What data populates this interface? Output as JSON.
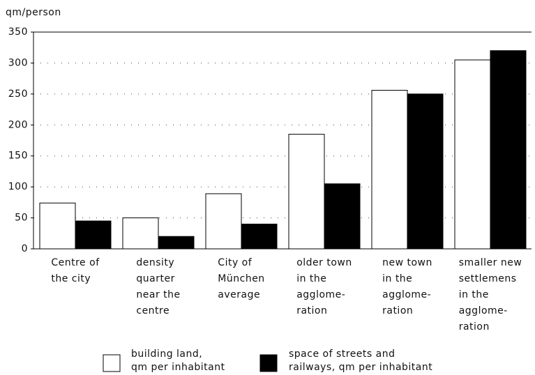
{
  "chart_data": {
    "type": "bar",
    "y_label": "qm/person",
    "categories": [
      [
        "Centre of",
        "the city"
      ],
      [
        "density",
        "quarter",
        "near the",
        "centre"
      ],
      [
        "City of",
        "München",
        "average"
      ],
      [
        "older town",
        "in the",
        "agglome-",
        "ration"
      ],
      [
        "new town",
        "in the",
        "agglome-",
        "ration"
      ],
      [
        "smaller new",
        "settlemens",
        "in the",
        "agglome-",
        "ration"
      ]
    ],
    "series": [
      {
        "name": [
          "building land,",
          "qm per inhabitant"
        ],
        "color": "#ffffff",
        "values": [
          74,
          50,
          89,
          185,
          256,
          305
        ]
      },
      {
        "name": [
          "space of streets and",
          "railways, qm per inhabitant"
        ],
        "color": "#000000",
        "values": [
          45,
          20,
          40,
          105,
          250,
          320
        ]
      }
    ],
    "ylim": [
      0,
      350
    ],
    "yticks": [
      0,
      50,
      100,
      150,
      200,
      250,
      300,
      350
    ],
    "grid": true
  }
}
